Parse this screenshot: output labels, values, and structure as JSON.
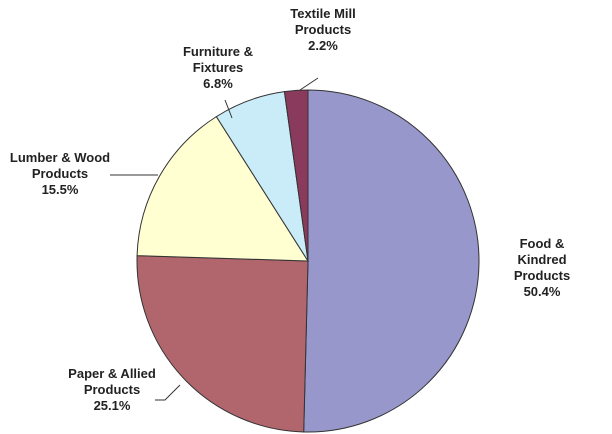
{
  "chart_data": {
    "type": "pie",
    "categories": [
      "Food & Kindred\nProducts",
      "Paper & Allied\nProducts",
      "Lumber & Wood\nProducts",
      "Furniture &\nFixtures",
      "Textile Mill\nProducts"
    ],
    "values": [
      50.4,
      25.1,
      15.5,
      6.8,
      2.2
    ],
    "value_labels": [
      "50.4%",
      "25.1%",
      "15.5%",
      "6.8%",
      "2.2%"
    ],
    "colors": [
      "#9797cc",
      "#b0666c",
      "#ffffd2",
      "#c9ecf8",
      "#8a3a5c"
    ]
  }
}
